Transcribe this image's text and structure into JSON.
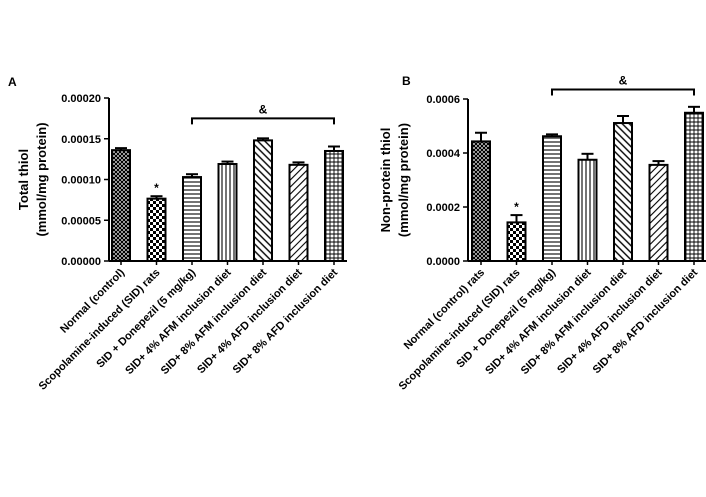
{
  "chart_data": [
    {
      "type": "bar",
      "panel_label": "A",
      "ylabel_line1": "Total thiol",
      "ylabel_line2": "(mmol/mg protein)",
      "ylim": [
        0,
        0.0002
      ],
      "yticks": [
        0,
        5e-05,
        0.0001,
        0.00015,
        0.0002
      ],
      "ytick_labels": [
        "0.00000",
        "0.00005",
        "0.00010",
        "0.00015",
        "0.00020"
      ],
      "categories": [
        "Normal (control)",
        "Scopolamine-induced (SID) rats",
        "SID + Donepezil (5 mg/kg)",
        "SID+ 4% AFM inclusion diet",
        "SID+ 8% AFM inclusion diet",
        "SID+ 4% AFD inclusion diet",
        "SID+ 8% AFD inclusion diet"
      ],
      "values": [
        0.000136,
        7.65e-05,
        0.000103,
        0.000119,
        0.000148,
        0.000118,
        0.000135
      ],
      "errors": [
        2.5e-06,
        3e-06,
        3.5e-06,
        3e-06,
        2.5e-06,
        3e-06,
        5.5e-06
      ],
      "patterns": [
        "crosshatch",
        "checker",
        "hlines",
        "vlines",
        "diag-right",
        "diag-left",
        "grid"
      ],
      "annotations": [
        {
          "text": "*",
          "index": 1
        }
      ],
      "bracket": {
        "text": "&",
        "from": 2,
        "to": 6,
        "y": 0.000175
      }
    },
    {
      "type": "bar",
      "panel_label": "B",
      "ylabel_line1": "Non-protein thiol",
      "ylabel_line2": "(mmol/mg protein)",
      "ylim": [
        0,
        0.0006
      ],
      "yticks": [
        0,
        0.0002,
        0.0004,
        0.0006
      ],
      "ytick_labels": [
        "0.0000",
        "0.0002",
        "0.0004",
        "0.0006"
      ],
      "categories": [
        "Normal (control) rats",
        "Scopolamine-induced (SID) rats",
        "SID + Donepezil (5 mg/kg)",
        "SID+ 4% AFM inclusion diet",
        "SID+ 8% AFM inclusion diet",
        "SID+ 4% AFD inclusion diet",
        "SID+ 8% AFD inclusion diet"
      ],
      "values": [
        0.000443,
        0.000143,
        0.000462,
        0.000375,
        0.000511,
        0.000356,
        0.000549
      ],
      "errors": [
        3.2e-05,
        2.7e-05,
        7e-06,
        2.2e-05,
        2.6e-05,
        1.4e-05,
        2.2e-05
      ],
      "patterns": [
        "crosshatch",
        "checker",
        "hlines",
        "vlines",
        "diag-right",
        "diag-left",
        "grid"
      ],
      "annotations": [
        {
          "text": "*",
          "index": 1
        }
      ],
      "bracket": {
        "text": "&",
        "from": 2,
        "to": 6,
        "y": 0.000635
      }
    }
  ]
}
